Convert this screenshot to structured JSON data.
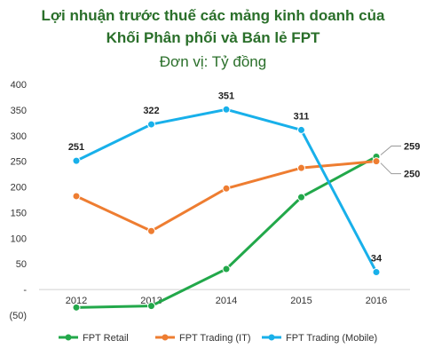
{
  "chart_data": {
    "type": "line",
    "title": "Lợi nhuận trước thuế các mảng kinh doanh của",
    "title_line2": "Khối Phân phối và Bán lẻ FPT",
    "subtitle": "Đơn vị: Tỷ đồng",
    "categories": [
      "2012",
      "2013",
      "2014",
      "2015",
      "2016"
    ],
    "ylim": [
      -50,
      400
    ],
    "yticks": [
      {
        "value": 400,
        "label": "400"
      },
      {
        "value": 350,
        "label": "350"
      },
      {
        "value": 300,
        "label": "300"
      },
      {
        "value": 250,
        "label": "250"
      },
      {
        "value": 200,
        "label": "200"
      },
      {
        "value": 150,
        "label": "150"
      },
      {
        "value": 100,
        "label": "100"
      },
      {
        "value": 50,
        "label": "50"
      },
      {
        "value": 0,
        "label": "-"
      },
      {
        "value": -50,
        "label": "(50)"
      }
    ],
    "grid": false,
    "legend_position": "bottom",
    "series": [
      {
        "name": "FPT Retail",
        "color": "#22a84a",
        "values": [
          -35,
          -32,
          40,
          180,
          259
        ],
        "labels": [
          "",
          "",
          "",
          "",
          "259"
        ]
      },
      {
        "name": "FPT Trading (IT)",
        "color": "#ee7d31",
        "values": [
          182,
          114,
          197,
          237,
          250
        ],
        "labels": [
          "",
          "",
          "",
          "",
          "250"
        ]
      },
      {
        "name": "FPT Trading (Mobile)",
        "color": "#18b0ea",
        "values": [
          251,
          322,
          351,
          311,
          34
        ],
        "labels": [
          "251",
          "322",
          "351",
          "311",
          "34"
        ]
      }
    ]
  }
}
